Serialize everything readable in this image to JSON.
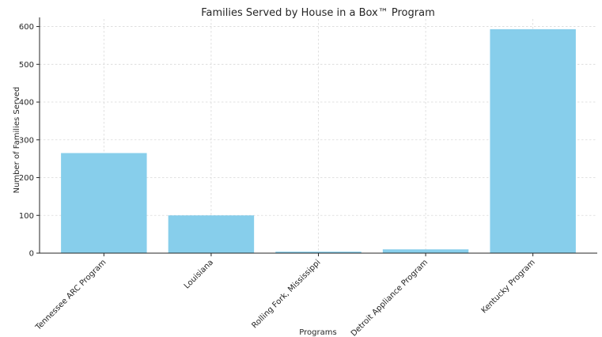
{
  "chart_data": {
    "type": "bar",
    "title": "Families Served by House in a Box™ Program",
    "xlabel": "Programs",
    "ylabel": "Number of Families Served",
    "categories": [
      "Tennessee ARC Program",
      "Louisiana",
      "Rolling Fork, Mississippi",
      "Detroit Appliance Program",
      "Kentucky Program"
    ],
    "values": [
      265,
      100,
      4,
      10,
      593
    ],
    "ylim": [
      0,
      620
    ],
    "yticks": [
      0,
      100,
      200,
      300,
      400,
      500,
      600
    ],
    "grid": true,
    "bar_color": "#87ceeb"
  }
}
